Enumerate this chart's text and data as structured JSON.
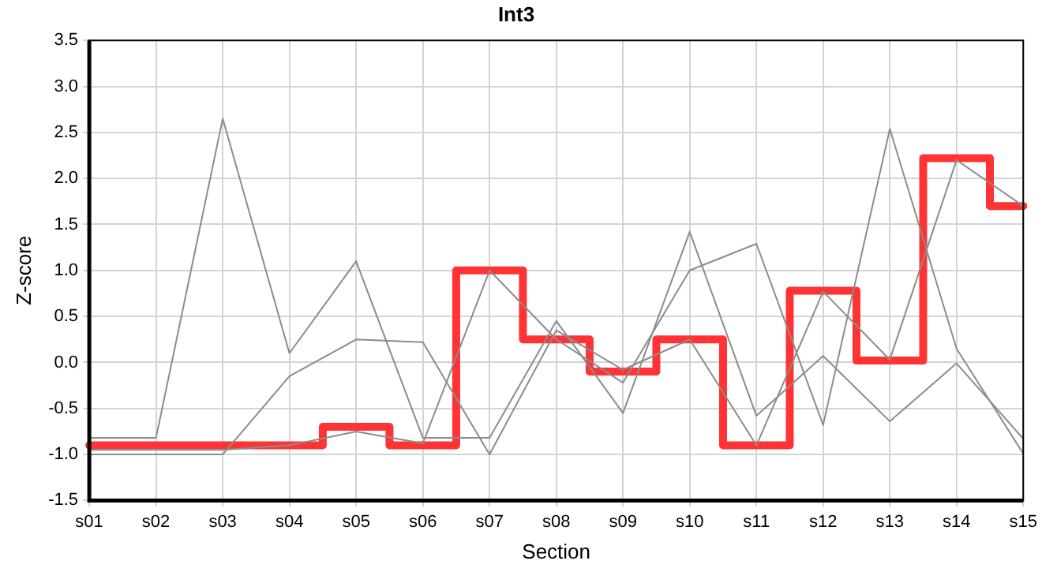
{
  "chart_data": {
    "type": "line",
    "title": "Int3",
    "xlabel": "Section",
    "ylabel": "Z-score",
    "categories": [
      "s01",
      "s02",
      "s03",
      "s04",
      "s05",
      "s06",
      "s07",
      "s08",
      "s09",
      "s10",
      "s11",
      "s12",
      "s13",
      "s14",
      "s15"
    ],
    "series": [
      {
        "color": "#8c8c8c",
        "values": [
          -0.82,
          -0.82,
          2.65,
          0.1,
          1.1,
          -0.82,
          -0.82,
          0.45,
          -0.55,
          1.42,
          -0.58,
          0.07,
          -0.64,
          -0.01,
          -0.83
        ]
      },
      {
        "color": "#8c8c8c",
        "values": [
          -1.0,
          -1.0,
          -1.0,
          -0.15,
          0.25,
          0.22,
          -1.0,
          0.35,
          -0.08,
          0.25,
          -0.9,
          0.77,
          0.03,
          2.2,
          1.7
        ]
      },
      {
        "color": "#8c8c8c",
        "values": [
          -0.95,
          -0.95,
          -0.95,
          -0.9,
          -0.75,
          -0.88,
          1.0,
          0.25,
          -0.22,
          1.0,
          1.29,
          -0.68,
          2.54,
          0.15,
          -0.99
        ]
      },
      {
        "type": "step",
        "color": "#ff3333",
        "values": [
          -0.9,
          -0.9,
          -0.9,
          -0.9,
          -0.7,
          -0.9,
          1.0,
          0.25,
          -0.1,
          0.25,
          -0.9,
          0.78,
          0.02,
          2.22,
          1.7
        ]
      }
    ],
    "ylim": [
      -1.5,
      3.5
    ],
    "yticks": [
      {
        "value": -1.5,
        "label": "-1.5"
      },
      {
        "value": -1,
        "label": "-1.0"
      },
      {
        "value": -0.5,
        "label": "-0.5"
      },
      {
        "value": 0,
        "label": "0.0"
      },
      {
        "value": 0.5,
        "label": "0.5"
      },
      {
        "value": 1,
        "label": "1.0"
      },
      {
        "value": 1.5,
        "label": "1.5"
      },
      {
        "value": 2,
        "label": "2.0"
      },
      {
        "value": 2.5,
        "label": "2.5"
      },
      {
        "value": 3,
        "label": "3.0"
      },
      {
        "value": 3.5,
        "label": "3.5"
      }
    ],
    "grid": true,
    "legend": false,
    "marker": "none"
  }
}
